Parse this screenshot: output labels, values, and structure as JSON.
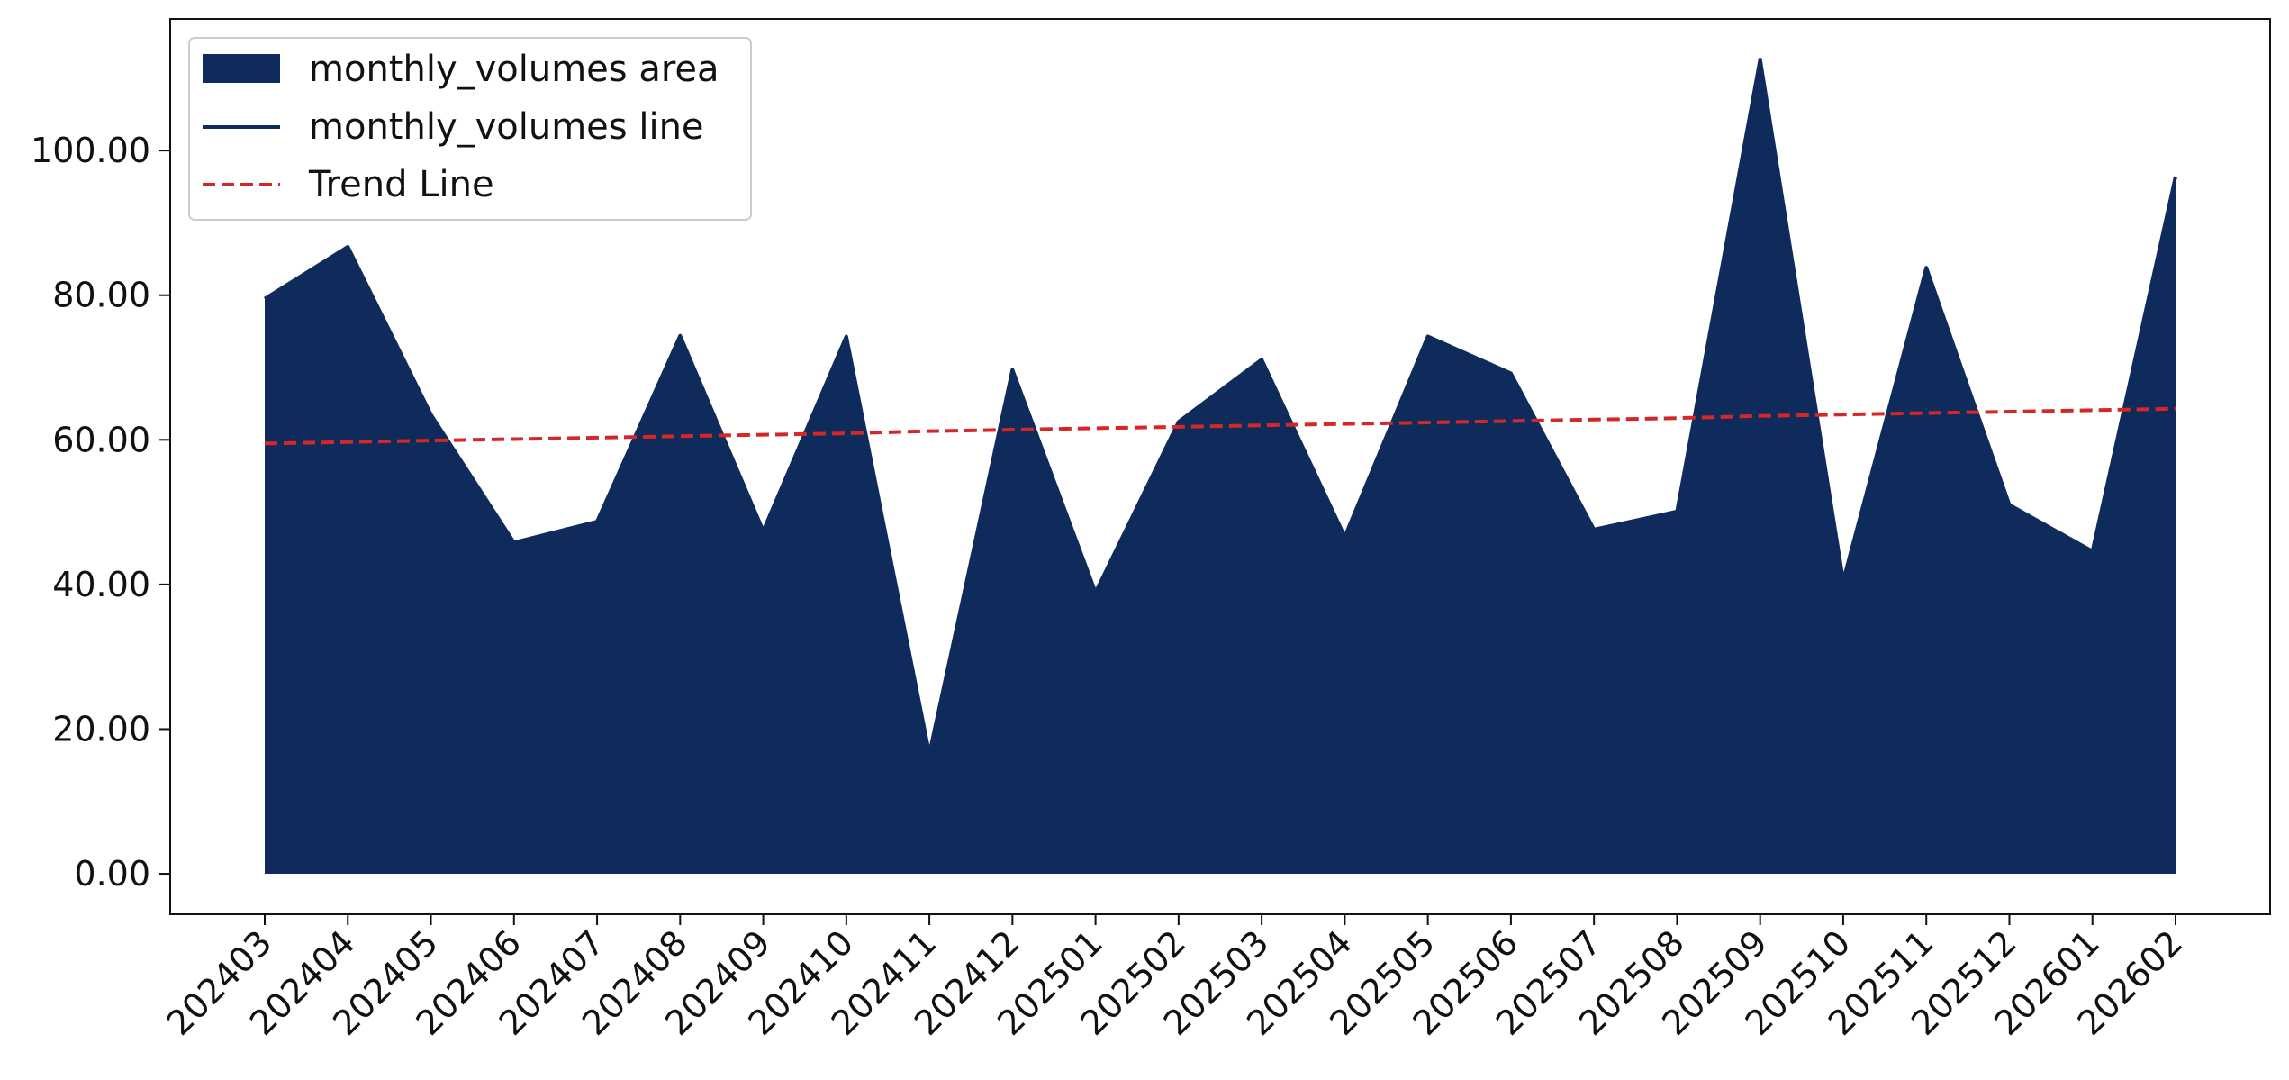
{
  "chart_data": {
    "type": "area",
    "title": "",
    "xlabel": "",
    "ylabel": "",
    "categories": [
      "202403",
      "202404",
      "202405",
      "202406",
      "202407",
      "202408",
      "202409",
      "202410",
      "202411",
      "202412",
      "202501",
      "202502",
      "202503",
      "202504",
      "202505",
      "202506",
      "202507",
      "202508",
      "202509",
      "202510",
      "202511",
      "202512",
      "202601",
      "202602"
    ],
    "series": [
      {
        "name": "monthly_volumes area",
        "kind": "area",
        "color": "#0f2b5b",
        "values": [
          79.5,
          86.7,
          63.5,
          45.8,
          48.7,
          74.4,
          47.4,
          74.3,
          16.6,
          69.7,
          38.9,
          62.5,
          71.1,
          46.6,
          74.3,
          69.2,
          47.6,
          50.1,
          112.6,
          40.5,
          83.8,
          51.0,
          44.6,
          96.4
        ]
      },
      {
        "name": "monthly_volumes line",
        "kind": "line",
        "color": "#0f2b5b",
        "values": [
          79.5,
          86.7,
          63.5,
          45.8,
          48.7,
          74.4,
          47.4,
          74.3,
          16.6,
          69.7,
          38.9,
          62.5,
          71.1,
          46.6,
          74.3,
          69.2,
          47.6,
          50.1,
          112.6,
          40.5,
          83.8,
          51.0,
          44.6,
          96.4
        ]
      },
      {
        "name": "Trend Line",
        "kind": "dashed-line",
        "color": "#d62728",
        "values": [
          59.5,
          59.7,
          59.9,
          60.1,
          60.3,
          60.5,
          60.7,
          60.9,
          61.2,
          61.4,
          61.6,
          61.8,
          62.0,
          62.2,
          62.4,
          62.6,
          62.8,
          63.0,
          63.3,
          63.5,
          63.7,
          63.9,
          64.1,
          64.3
        ]
      }
    ],
    "yticks": [
      "0.00",
      "20.00",
      "40.00",
      "60.00",
      "80.00",
      "100.00"
    ],
    "ytick_values": [
      0,
      20,
      40,
      60,
      80,
      100
    ],
    "ylim": [
      -5.6,
      118.2
    ],
    "grid": false,
    "legend_position": "top-left",
    "x_tick_rotation": -45
  }
}
